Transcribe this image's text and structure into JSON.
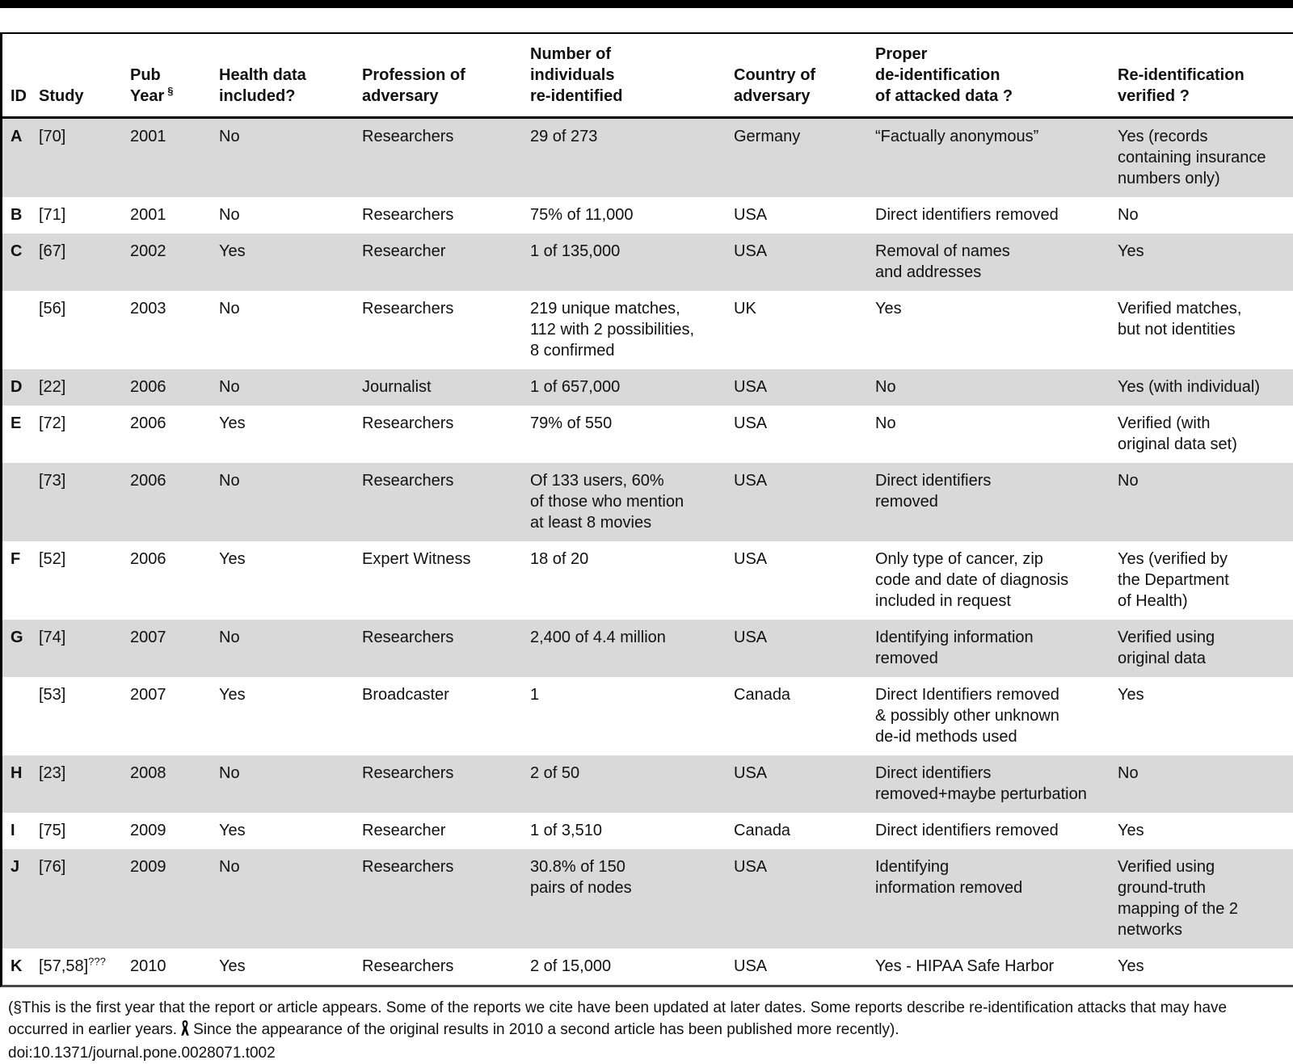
{
  "table": {
    "header": {
      "id": "ID",
      "study": "Study",
      "pub_year": "Pub\nYear",
      "pub_year_sup": "§",
      "health": "Health data\nincluded?",
      "profession": "Profession of\nadversary",
      "number": "Number of\nindividuals\nre-identified",
      "country": "Country of\nadversary",
      "deid": "Proper\nde-identification\nof attacked data ?",
      "verified": "Re-identification\nverified ?"
    },
    "rows": [
      {
        "id": "A",
        "study": "[70]",
        "study_sup": "",
        "year": "2001",
        "health": "No",
        "profession": "Researchers",
        "number": "29 of 273",
        "country": "Germany",
        "deid": "“Factually anonymous”",
        "verified": "Yes (records\ncontaining insurance\nnumbers only)",
        "shaded": true
      },
      {
        "id": "B",
        "study": "[71]",
        "study_sup": "",
        "year": "2001",
        "health": "No",
        "profession": "Researchers",
        "number": "75% of 11,000",
        "country": "USA",
        "deid": "Direct identifiers removed",
        "verified": "No",
        "shaded": false
      },
      {
        "id": "C",
        "study": "[67]",
        "study_sup": "",
        "year": "2002",
        "health": "Yes",
        "profession": "Researcher",
        "number": "1 of 135,000",
        "country": "USA",
        "deid": "Removal of names\nand addresses",
        "verified": "Yes",
        "shaded": true
      },
      {
        "id": "",
        "study": "[56]",
        "study_sup": "",
        "year": "2003",
        "health": "No",
        "profession": "Researchers",
        "number": "219 unique matches,\n112 with 2 possibilities,\n8 confirmed",
        "country": "UK",
        "deid": "Yes",
        "verified": "Verified matches,\nbut not identities",
        "shaded": false
      },
      {
        "id": "D",
        "study": "[22]",
        "study_sup": "",
        "year": "2006",
        "health": "No",
        "profession": "Journalist",
        "number": "1 of 657,000",
        "country": "USA",
        "deid": "No",
        "verified": "Yes (with individual)",
        "shaded": true
      },
      {
        "id": "E",
        "study": "[72]",
        "study_sup": "",
        "year": "2006",
        "health": "Yes",
        "profession": "Researchers",
        "number": "79% of 550",
        "country": "USA",
        "deid": "No",
        "verified": "Verified (with\noriginal data set)",
        "shaded": false
      },
      {
        "id": "",
        "study": "[73]",
        "study_sup": "",
        "year": "2006",
        "health": "No",
        "profession": "Researchers",
        "number": "Of 133 users, 60%\nof those who mention\nat least 8 movies",
        "country": "USA",
        "deid": "Direct identifiers\nremoved",
        "verified": "No",
        "shaded": true
      },
      {
        "id": "F",
        "study": "[52]",
        "study_sup": "",
        "year": "2006",
        "health": "Yes",
        "profession": "Expert Witness",
        "number": "18 of 20",
        "country": "USA",
        "deid": "Only type of cancer, zip\ncode and date of diagnosis\nincluded in request",
        "verified": "Yes (verified by\nthe Department\nof Health)",
        "shaded": false
      },
      {
        "id": "G",
        "study": "[74]",
        "study_sup": "",
        "year": "2007",
        "health": "No",
        "profession": "Researchers",
        "number": "2,400 of 4.4 million",
        "country": "USA",
        "deid": "Identifying information\nremoved",
        "verified": "Verified using\noriginal data",
        "shaded": true
      },
      {
        "id": "",
        "study": "[53]",
        "study_sup": "",
        "year": "2007",
        "health": "Yes",
        "profession": "Broadcaster",
        "number": "1",
        "country": "Canada",
        "deid": "Direct Identifiers removed\n& possibly other unknown\nde-id methods used",
        "verified": "Yes",
        "shaded": false
      },
      {
        "id": "H",
        "study": "[23]",
        "study_sup": "",
        "year": "2008",
        "health": "No",
        "profession": "Researchers",
        "number": "2 of 50",
        "country": "USA",
        "deid": "Direct identifiers\nremoved+maybe perturbation",
        "verified": "No",
        "shaded": true
      },
      {
        "id": "I",
        "study": "[75]",
        "study_sup": "",
        "year": "2009",
        "health": "Yes",
        "profession": "Researcher",
        "number": "1 of 3,510",
        "country": "Canada",
        "deid": "Direct identifiers removed",
        "verified": "Yes",
        "shaded": false
      },
      {
        "id": "J",
        "study": "[76]",
        "study_sup": "",
        "year": "2009",
        "health": "No",
        "profession": "Researchers",
        "number": "30.8% of 150\npairs of nodes",
        "country": "USA",
        "deid": "Identifying\ninformation removed",
        "verified": "Verified using\nground-truth\nmapping of the 2\nnetworks",
        "shaded": true
      },
      {
        "id": "K",
        "study": "[57,58]",
        "study_sup": "???",
        "year": "2010",
        "health": "Yes",
        "profession": "Researchers",
        "number": "2 of 15,000",
        "country": "USA",
        "deid": "Yes - HIPAA Safe Harbor",
        "verified": "Yes",
        "shaded": false
      }
    ]
  },
  "footer": {
    "note_before": "(§This is the first year that the report or article appears. Some of the reports we cite have been updated at later dates. Some reports describe re-identification attacks that may have occurred in earlier years.",
    "ribbon_icon": "awareness-ribbon",
    "note_after": "Since the appearance of the original results in 2010 a second article has been published more recently).",
    "doi": "doi:10.1371/journal.pone.0028071.t002"
  },
  "colors": {
    "row_shading": "#d9d9d9",
    "rule_black": "#000000",
    "rule_bottom": "#4a4a4a"
  }
}
